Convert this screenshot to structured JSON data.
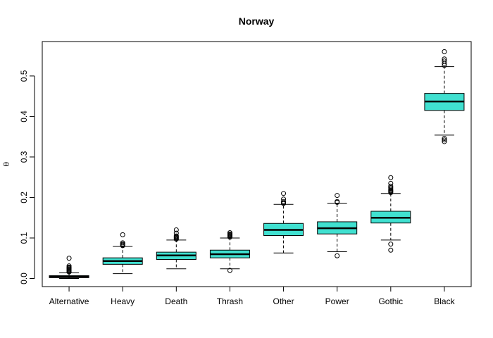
{
  "chart_data": {
    "type": "boxplot",
    "title": "Norway",
    "xlabel": "",
    "ylabel": "θ",
    "ylim": [
      -0.02,
      0.585
    ],
    "yticks": [
      0.0,
      0.1,
      0.2,
      0.3,
      0.4,
      0.5
    ],
    "ytick_labels": [
      "0.0",
      "0.1",
      "0.2",
      "0.3",
      "0.4",
      "0.5"
    ],
    "grid": false,
    "box_color": "#40E0D0",
    "categories": [
      "Alternative",
      "Heavy",
      "Death",
      "Thrash",
      "Other",
      "Power",
      "Gothic",
      "Black"
    ],
    "boxes": [
      {
        "q1": 0.002,
        "median": 0.004,
        "q3": 0.007,
        "whisker_low": 0.0,
        "whisker_high": 0.014,
        "outliers": [
          0.016,
          0.018,
          0.02,
          0.022,
          0.024,
          0.026,
          0.028,
          0.031,
          0.05
        ]
      },
      {
        "q1": 0.035,
        "median": 0.043,
        "q3": 0.051,
        "whisker_low": 0.012,
        "whisker_high": 0.079,
        "outliers": [
          0.081,
          0.083,
          0.085,
          0.088,
          0.108
        ]
      },
      {
        "q1": 0.047,
        "median": 0.057,
        "q3": 0.065,
        "whisker_low": 0.024,
        "whisker_high": 0.095,
        "outliers": [
          0.097,
          0.099,
          0.101,
          0.103,
          0.105,
          0.112,
          0.12
        ]
      },
      {
        "q1": 0.051,
        "median": 0.06,
        "q3": 0.07,
        "whisker_low": 0.024,
        "whisker_high": 0.1,
        "outliers": [
          0.02,
          0.102,
          0.104,
          0.106,
          0.108,
          0.11,
          0.113
        ]
      },
      {
        "q1": 0.106,
        "median": 0.12,
        "q3": 0.136,
        "whisker_low": 0.063,
        "whisker_high": 0.183,
        "outliers": [
          0.185,
          0.187,
          0.19,
          0.196,
          0.21
        ]
      },
      {
        "q1": 0.11,
        "median": 0.124,
        "q3": 0.14,
        "whisker_low": 0.066,
        "whisker_high": 0.186,
        "outliers": [
          0.056,
          0.188,
          0.19,
          0.205
        ]
      },
      {
        "q1": 0.137,
        "median": 0.15,
        "q3": 0.166,
        "whisker_low": 0.095,
        "whisker_high": 0.21,
        "outliers": [
          0.07,
          0.085,
          0.212,
          0.214,
          0.216,
          0.218,
          0.221,
          0.224,
          0.228,
          0.235,
          0.249
        ]
      },
      {
        "q1": 0.415,
        "median": 0.437,
        "q3": 0.457,
        "whisker_low": 0.354,
        "whisker_high": 0.523,
        "outliers": [
          0.338,
          0.342,
          0.346,
          0.526,
          0.531,
          0.537,
          0.542,
          0.56
        ]
      }
    ]
  }
}
